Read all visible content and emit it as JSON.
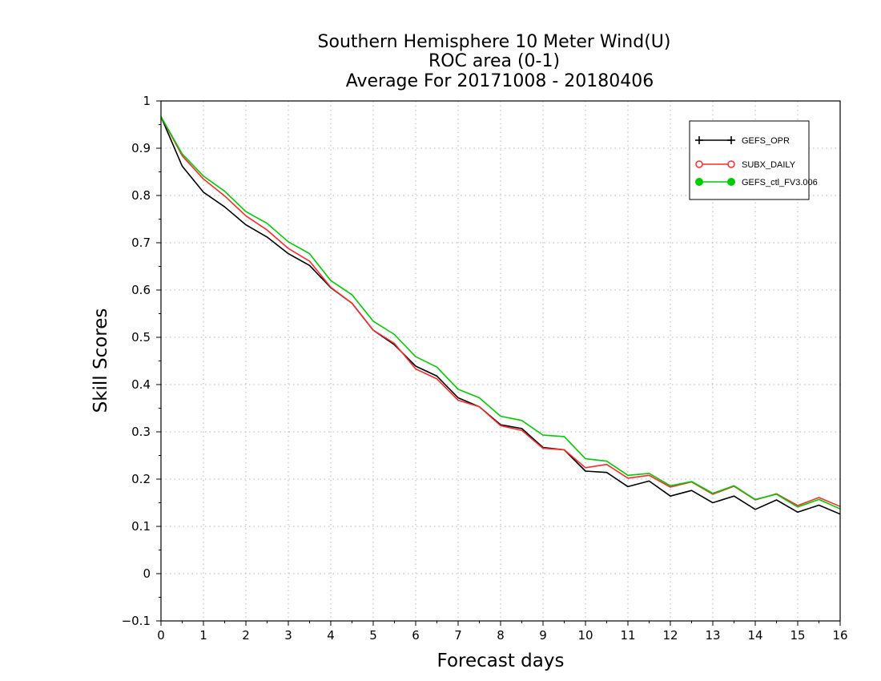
{
  "title": {
    "line1": "Southern Hemisphere 10 Meter Wind(U)",
    "line2": "ROC area (0-1)",
    "line3": "Average For 20171008 - 20180406"
  },
  "chart_data": {
    "type": "line",
    "xlabel": "Forecast days",
    "ylabel": "Skill Scores",
    "xlim": [
      0,
      16
    ],
    "ylim": [
      -0.1,
      1
    ],
    "xticks": [
      "0",
      "1",
      "2",
      "3",
      "4",
      "5",
      "6",
      "7",
      "8",
      "9",
      "10",
      "11",
      "12",
      "13",
      "14",
      "15",
      "16"
    ],
    "yticks": [
      "-0.1",
      "0",
      "0.1",
      "0.2",
      "0.3",
      "0.4",
      "0.5",
      "0.6",
      "0.7",
      "0.8",
      "0.9",
      "1"
    ],
    "grid": true,
    "legend_position": "top-right",
    "x": [
      0,
      0.5,
      1,
      1.5,
      2,
      2.5,
      3,
      3.5,
      4,
      4.5,
      5,
      5.5,
      6,
      6.5,
      7,
      7.5,
      8,
      8.5,
      9,
      9.5,
      10,
      10.5,
      11,
      11.5,
      12,
      12.5,
      13,
      13.5,
      14,
      14.5,
      15,
      15.5,
      16
    ],
    "series": [
      {
        "name": "GEFS_OPR",
        "color": "#000000",
        "marker": "plus",
        "values": [
          0.967,
          0.862,
          0.807,
          0.776,
          0.738,
          0.712,
          0.677,
          0.652,
          0.605,
          0.572,
          0.515,
          0.484,
          0.439,
          0.418,
          0.372,
          0.353,
          0.315,
          0.307,
          0.267,
          0.262,
          0.217,
          0.214,
          0.184,
          0.196,
          0.164,
          0.176,
          0.15,
          0.164,
          0.136,
          0.156,
          0.13,
          0.145,
          0.126
        ]
      },
      {
        "name": "SUBX_DAILY",
        "color": "#ff2a2a",
        "marker": "open-circle",
        "values": [
          0.967,
          0.884,
          0.835,
          0.799,
          0.757,
          0.727,
          0.688,
          0.661,
          0.606,
          0.572,
          0.515,
          0.487,
          0.433,
          0.412,
          0.367,
          0.353,
          0.313,
          0.303,
          0.265,
          0.262,
          0.224,
          0.231,
          0.202,
          0.208,
          0.183,
          0.194,
          0.168,
          0.185,
          0.156,
          0.169,
          0.144,
          0.161,
          0.142
        ]
      },
      {
        "name": "GEFS_ctl_FV3.006",
        "color": "#00cc00",
        "marker": "filled-circle",
        "values": [
          0.967,
          0.888,
          0.841,
          0.809,
          0.766,
          0.741,
          0.702,
          0.677,
          0.62,
          0.59,
          0.534,
          0.506,
          0.459,
          0.437,
          0.39,
          0.372,
          0.333,
          0.324,
          0.293,
          0.29,
          0.243,
          0.238,
          0.208,
          0.212,
          0.186,
          0.195,
          0.17,
          0.186,
          0.157,
          0.168,
          0.141,
          0.157,
          0.137
        ]
      }
    ]
  }
}
